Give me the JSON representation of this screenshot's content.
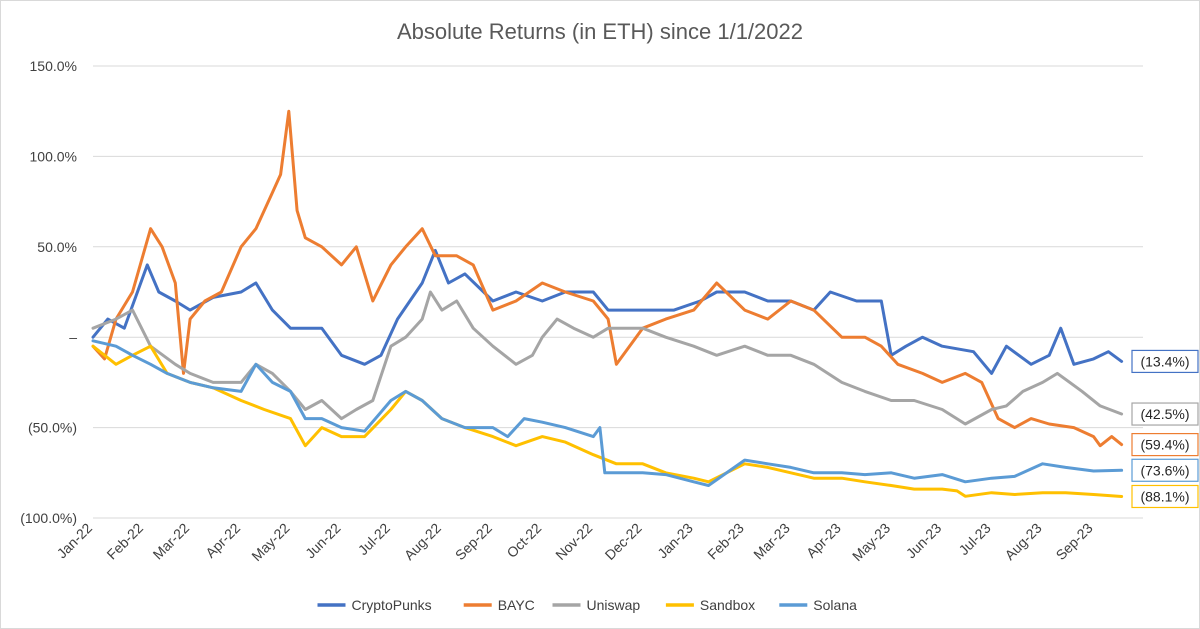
{
  "chart_data": {
    "type": "line",
    "title": "Absolute Returns (in ETH) since 1/1/2022",
    "xlabel": "",
    "ylabel": "",
    "x_ticks": [
      "Jan-22",
      "Feb-22",
      "Mar-22",
      "Apr-22",
      "May-22",
      "Jun-22",
      "Jul-22",
      "Aug-22",
      "Sep-22",
      "Oct-22",
      "Nov-22",
      "Dec-22",
      "Jan-23",
      "Feb-23",
      "Mar-23",
      "Apr-23",
      "May-23",
      "Jun-23",
      "Jul-23",
      "Aug-23",
      "Sep-23"
    ],
    "x_range": [
      "2022-01-01",
      "2023-10-01"
    ],
    "y_ticks": [
      {
        "value": 150,
        "label": "150.0%"
      },
      {
        "value": 100,
        "label": "100.0%"
      },
      {
        "value": 50,
        "label": "50.0%"
      },
      {
        "value": 0,
        "label": "–"
      },
      {
        "value": -50,
        "label": "(50.0%)"
      },
      {
        "value": -100,
        "label": "(100.0%)"
      }
    ],
    "ylim": [
      -100,
      150
    ],
    "grid": "horizontal",
    "legend_position": "bottom",
    "series": [
      {
        "name": "CryptoPunks",
        "color": "#4472c4",
        "end_label": "(13.4%)",
        "points": [
          [
            "2022-01-01",
            0
          ],
          [
            "2022-01-10",
            10
          ],
          [
            "2022-01-20",
            5
          ],
          [
            "2022-02-03",
            40
          ],
          [
            "2022-02-10",
            25
          ],
          [
            "2022-02-20",
            20
          ],
          [
            "2022-03-01",
            15
          ],
          [
            "2022-03-15",
            22
          ],
          [
            "2022-04-01",
            25
          ],
          [
            "2022-04-10",
            30
          ],
          [
            "2022-04-20",
            15
          ],
          [
            "2022-05-01",
            5
          ],
          [
            "2022-05-20",
            5
          ],
          [
            "2022-06-01",
            -10
          ],
          [
            "2022-06-15",
            -15
          ],
          [
            "2022-06-25",
            -10
          ],
          [
            "2022-07-05",
            10
          ],
          [
            "2022-07-20",
            30
          ],
          [
            "2022-07-28",
            48
          ],
          [
            "2022-08-05",
            30
          ],
          [
            "2022-08-15",
            35
          ],
          [
            "2022-09-01",
            20
          ],
          [
            "2022-09-15",
            25
          ],
          [
            "2022-10-01",
            20
          ],
          [
            "2022-10-15",
            25
          ],
          [
            "2022-11-01",
            25
          ],
          [
            "2022-11-10",
            15
          ],
          [
            "2022-12-01",
            15
          ],
          [
            "2022-12-20",
            15
          ],
          [
            "2023-01-05",
            20
          ],
          [
            "2023-01-15",
            25
          ],
          [
            "2023-02-01",
            25
          ],
          [
            "2023-02-15",
            20
          ],
          [
            "2023-03-01",
            20
          ],
          [
            "2023-03-15",
            15
          ],
          [
            "2023-03-25",
            25
          ],
          [
            "2023-04-10",
            20
          ],
          [
            "2023-04-25",
            20
          ],
          [
            "2023-05-01",
            -10
          ],
          [
            "2023-05-10",
            -5
          ],
          [
            "2023-05-20",
            0
          ],
          [
            "2023-06-01",
            -5
          ],
          [
            "2023-06-20",
            -8
          ],
          [
            "2023-07-01",
            -20
          ],
          [
            "2023-07-10",
            -5
          ],
          [
            "2023-07-25",
            -15
          ],
          [
            "2023-08-05",
            -10
          ],
          [
            "2023-08-12",
            5
          ],
          [
            "2023-08-20",
            -15
          ],
          [
            "2023-09-01",
            -12
          ],
          [
            "2023-09-10",
            -8
          ],
          [
            "2023-09-18",
            -13.4
          ]
        ]
      },
      {
        "name": "BAYC",
        "color": "#ed7d31",
        "end_label": "(59.4%)",
        "points": [
          [
            "2022-01-01",
            -5
          ],
          [
            "2022-01-08",
            -12
          ],
          [
            "2022-01-15",
            10
          ],
          [
            "2022-01-25",
            25
          ],
          [
            "2022-02-05",
            60
          ],
          [
            "2022-02-12",
            50
          ],
          [
            "2022-02-20",
            30
          ],
          [
            "2022-02-25",
            -20
          ],
          [
            "2022-03-01",
            10
          ],
          [
            "2022-03-10",
            20
          ],
          [
            "2022-03-20",
            25
          ],
          [
            "2022-04-01",
            50
          ],
          [
            "2022-04-10",
            60
          ],
          [
            "2022-04-20",
            80
          ],
          [
            "2022-04-25",
            90
          ],
          [
            "2022-04-30",
            125
          ],
          [
            "2022-05-05",
            70
          ],
          [
            "2022-05-10",
            55
          ],
          [
            "2022-05-20",
            50
          ],
          [
            "2022-06-01",
            40
          ],
          [
            "2022-06-10",
            50
          ],
          [
            "2022-06-20",
            20
          ],
          [
            "2022-07-01",
            40
          ],
          [
            "2022-07-10",
            50
          ],
          [
            "2022-07-20",
            60
          ],
          [
            "2022-07-28",
            45
          ],
          [
            "2022-08-10",
            45
          ],
          [
            "2022-08-20",
            40
          ],
          [
            "2022-09-01",
            15
          ],
          [
            "2022-09-15",
            20
          ],
          [
            "2022-10-01",
            30
          ],
          [
            "2022-10-15",
            25
          ],
          [
            "2022-11-01",
            20
          ],
          [
            "2022-11-10",
            10
          ],
          [
            "2022-11-15",
            -15
          ],
          [
            "2022-12-01",
            5
          ],
          [
            "2022-12-15",
            10
          ],
          [
            "2023-01-01",
            15
          ],
          [
            "2023-01-15",
            30
          ],
          [
            "2023-02-01",
            15
          ],
          [
            "2023-02-15",
            10
          ],
          [
            "2023-03-01",
            20
          ],
          [
            "2023-03-15",
            15
          ],
          [
            "2023-04-01",
            0
          ],
          [
            "2023-04-15",
            0
          ],
          [
            "2023-04-25",
            -5
          ],
          [
            "2023-05-05",
            -15
          ],
          [
            "2023-05-20",
            -20
          ],
          [
            "2023-06-01",
            -25
          ],
          [
            "2023-06-15",
            -20
          ],
          [
            "2023-06-25",
            -25
          ],
          [
            "2023-07-05",
            -45
          ],
          [
            "2023-07-15",
            -50
          ],
          [
            "2023-07-25",
            -45
          ],
          [
            "2023-08-05",
            -48
          ],
          [
            "2023-08-20",
            -50
          ],
          [
            "2023-09-01",
            -55
          ],
          [
            "2023-09-05",
            -60
          ],
          [
            "2023-09-12",
            -55
          ],
          [
            "2023-09-18",
            -59.4
          ]
        ]
      },
      {
        "name": "Uniswap",
        "color": "#a5a5a5",
        "end_label": "(42.5%)",
        "points": [
          [
            "2022-01-01",
            5
          ],
          [
            "2022-01-15",
            10
          ],
          [
            "2022-01-25",
            15
          ],
          [
            "2022-02-05",
            -5
          ],
          [
            "2022-02-20",
            -15
          ],
          [
            "2022-03-01",
            -20
          ],
          [
            "2022-03-15",
            -25
          ],
          [
            "2022-04-01",
            -25
          ],
          [
            "2022-04-10",
            -15
          ],
          [
            "2022-04-20",
            -20
          ],
          [
            "2022-05-01",
            -30
          ],
          [
            "2022-05-10",
            -40
          ],
          [
            "2022-05-20",
            -35
          ],
          [
            "2022-06-01",
            -45
          ],
          [
            "2022-06-10",
            -40
          ],
          [
            "2022-06-20",
            -35
          ],
          [
            "2022-07-01",
            -5
          ],
          [
            "2022-07-10",
            0
          ],
          [
            "2022-07-20",
            10
          ],
          [
            "2022-07-25",
            25
          ],
          [
            "2022-08-01",
            15
          ],
          [
            "2022-08-10",
            20
          ],
          [
            "2022-08-20",
            5
          ],
          [
            "2022-09-01",
            -5
          ],
          [
            "2022-09-15",
            -15
          ],
          [
            "2022-09-25",
            -10
          ],
          [
            "2022-10-01",
            0
          ],
          [
            "2022-10-10",
            10
          ],
          [
            "2022-10-20",
            5
          ],
          [
            "2022-11-01",
            0
          ],
          [
            "2022-11-10",
            5
          ],
          [
            "2022-11-20",
            5
          ],
          [
            "2022-12-01",
            5
          ],
          [
            "2022-12-15",
            0
          ],
          [
            "2023-01-01",
            -5
          ],
          [
            "2023-01-15",
            -10
          ],
          [
            "2023-02-01",
            -5
          ],
          [
            "2023-02-15",
            -10
          ],
          [
            "2023-03-01",
            -10
          ],
          [
            "2023-03-15",
            -15
          ],
          [
            "2023-04-01",
            -25
          ],
          [
            "2023-04-15",
            -30
          ],
          [
            "2023-05-01",
            -35
          ],
          [
            "2023-05-15",
            -35
          ],
          [
            "2023-06-01",
            -40
          ],
          [
            "2023-06-15",
            -48
          ],
          [
            "2023-07-01",
            -40
          ],
          [
            "2023-07-10",
            -38
          ],
          [
            "2023-07-20",
            -30
          ],
          [
            "2023-08-01",
            -25
          ],
          [
            "2023-08-10",
            -20
          ],
          [
            "2023-08-25",
            -30
          ],
          [
            "2023-09-05",
            -38
          ],
          [
            "2023-09-18",
            -42.5
          ]
        ]
      },
      {
        "name": "Sandbox",
        "color": "#ffc000",
        "end_label": "(88.1%)",
        "points": [
          [
            "2022-01-01",
            -5
          ],
          [
            "2022-01-15",
            -15
          ],
          [
            "2022-01-25",
            -10
          ],
          [
            "2022-02-05",
            -5
          ],
          [
            "2022-02-15",
            -20
          ],
          [
            "2022-03-01",
            -25
          ],
          [
            "2022-03-15",
            -28
          ],
          [
            "2022-04-01",
            -35
          ],
          [
            "2022-04-15",
            -40
          ],
          [
            "2022-05-01",
            -45
          ],
          [
            "2022-05-10",
            -60
          ],
          [
            "2022-05-20",
            -50
          ],
          [
            "2022-06-01",
            -55
          ],
          [
            "2022-06-15",
            -55
          ],
          [
            "2022-07-01",
            -40
          ],
          [
            "2022-07-10",
            -30
          ],
          [
            "2022-07-20",
            -35
          ],
          [
            "2022-08-01",
            -45
          ],
          [
            "2022-08-15",
            -50
          ],
          [
            "2022-09-01",
            -55
          ],
          [
            "2022-09-15",
            -60
          ],
          [
            "2022-10-01",
            -55
          ],
          [
            "2022-10-15",
            -58
          ],
          [
            "2022-11-01",
            -65
          ],
          [
            "2022-11-15",
            -70
          ],
          [
            "2022-12-01",
            -70
          ],
          [
            "2022-12-15",
            -75
          ],
          [
            "2023-01-01",
            -78
          ],
          [
            "2023-01-10",
            -80
          ],
          [
            "2023-02-01",
            -70
          ],
          [
            "2023-02-15",
            -72
          ],
          [
            "2023-03-01",
            -75
          ],
          [
            "2023-03-15",
            -78
          ],
          [
            "2023-04-01",
            -78
          ],
          [
            "2023-04-15",
            -80
          ],
          [
            "2023-05-01",
            -82
          ],
          [
            "2023-05-15",
            -84
          ],
          [
            "2023-06-01",
            -84
          ],
          [
            "2023-06-10",
            -85
          ],
          [
            "2023-06-15",
            -88
          ],
          [
            "2023-07-01",
            -86
          ],
          [
            "2023-07-15",
            -87
          ],
          [
            "2023-08-01",
            -86
          ],
          [
            "2023-08-15",
            -86
          ],
          [
            "2023-09-01",
            -87
          ],
          [
            "2023-09-18",
            -88.1
          ]
        ]
      },
      {
        "name": "Solana",
        "color": "#5b9bd5",
        "end_label": "(73.6%)",
        "points": [
          [
            "2022-01-01",
            -2
          ],
          [
            "2022-01-15",
            -5
          ],
          [
            "2022-01-25",
            -10
          ],
          [
            "2022-02-05",
            -15
          ],
          [
            "2022-02-15",
            -20
          ],
          [
            "2022-03-01",
            -25
          ],
          [
            "2022-03-15",
            -28
          ],
          [
            "2022-04-01",
            -30
          ],
          [
            "2022-04-10",
            -15
          ],
          [
            "2022-04-20",
            -25
          ],
          [
            "2022-05-01",
            -30
          ],
          [
            "2022-05-10",
            -45
          ],
          [
            "2022-05-20",
            -45
          ],
          [
            "2022-06-01",
            -50
          ],
          [
            "2022-06-15",
            -52
          ],
          [
            "2022-07-01",
            -35
          ],
          [
            "2022-07-10",
            -30
          ],
          [
            "2022-07-20",
            -35
          ],
          [
            "2022-08-01",
            -45
          ],
          [
            "2022-08-15",
            -50
          ],
          [
            "2022-09-01",
            -50
          ],
          [
            "2022-09-10",
            -55
          ],
          [
            "2022-09-20",
            -45
          ],
          [
            "2022-10-01",
            -47
          ],
          [
            "2022-10-15",
            -50
          ],
          [
            "2022-11-01",
            -55
          ],
          [
            "2022-11-05",
            -50
          ],
          [
            "2022-11-08",
            -75
          ],
          [
            "2022-11-20",
            -75
          ],
          [
            "2022-12-01",
            -75
          ],
          [
            "2022-12-15",
            -76
          ],
          [
            "2023-01-01",
            -80
          ],
          [
            "2023-01-10",
            -82
          ],
          [
            "2023-02-01",
            -68
          ],
          [
            "2023-02-15",
            -70
          ],
          [
            "2023-03-01",
            -72
          ],
          [
            "2023-03-15",
            -75
          ],
          [
            "2023-04-01",
            -75
          ],
          [
            "2023-04-15",
            -76
          ],
          [
            "2023-05-01",
            -75
          ],
          [
            "2023-05-15",
            -78
          ],
          [
            "2023-06-01",
            -76
          ],
          [
            "2023-06-15",
            -80
          ],
          [
            "2023-07-01",
            -78
          ],
          [
            "2023-07-15",
            -77
          ],
          [
            "2023-08-01",
            -70
          ],
          [
            "2023-08-15",
            -72
          ],
          [
            "2023-09-01",
            -74
          ],
          [
            "2023-09-18",
            -73.6
          ]
        ]
      }
    ],
    "end_label_order": [
      "CryptoPunks",
      "Uniswap",
      "BAYC",
      "Solana",
      "Sandbox"
    ]
  }
}
